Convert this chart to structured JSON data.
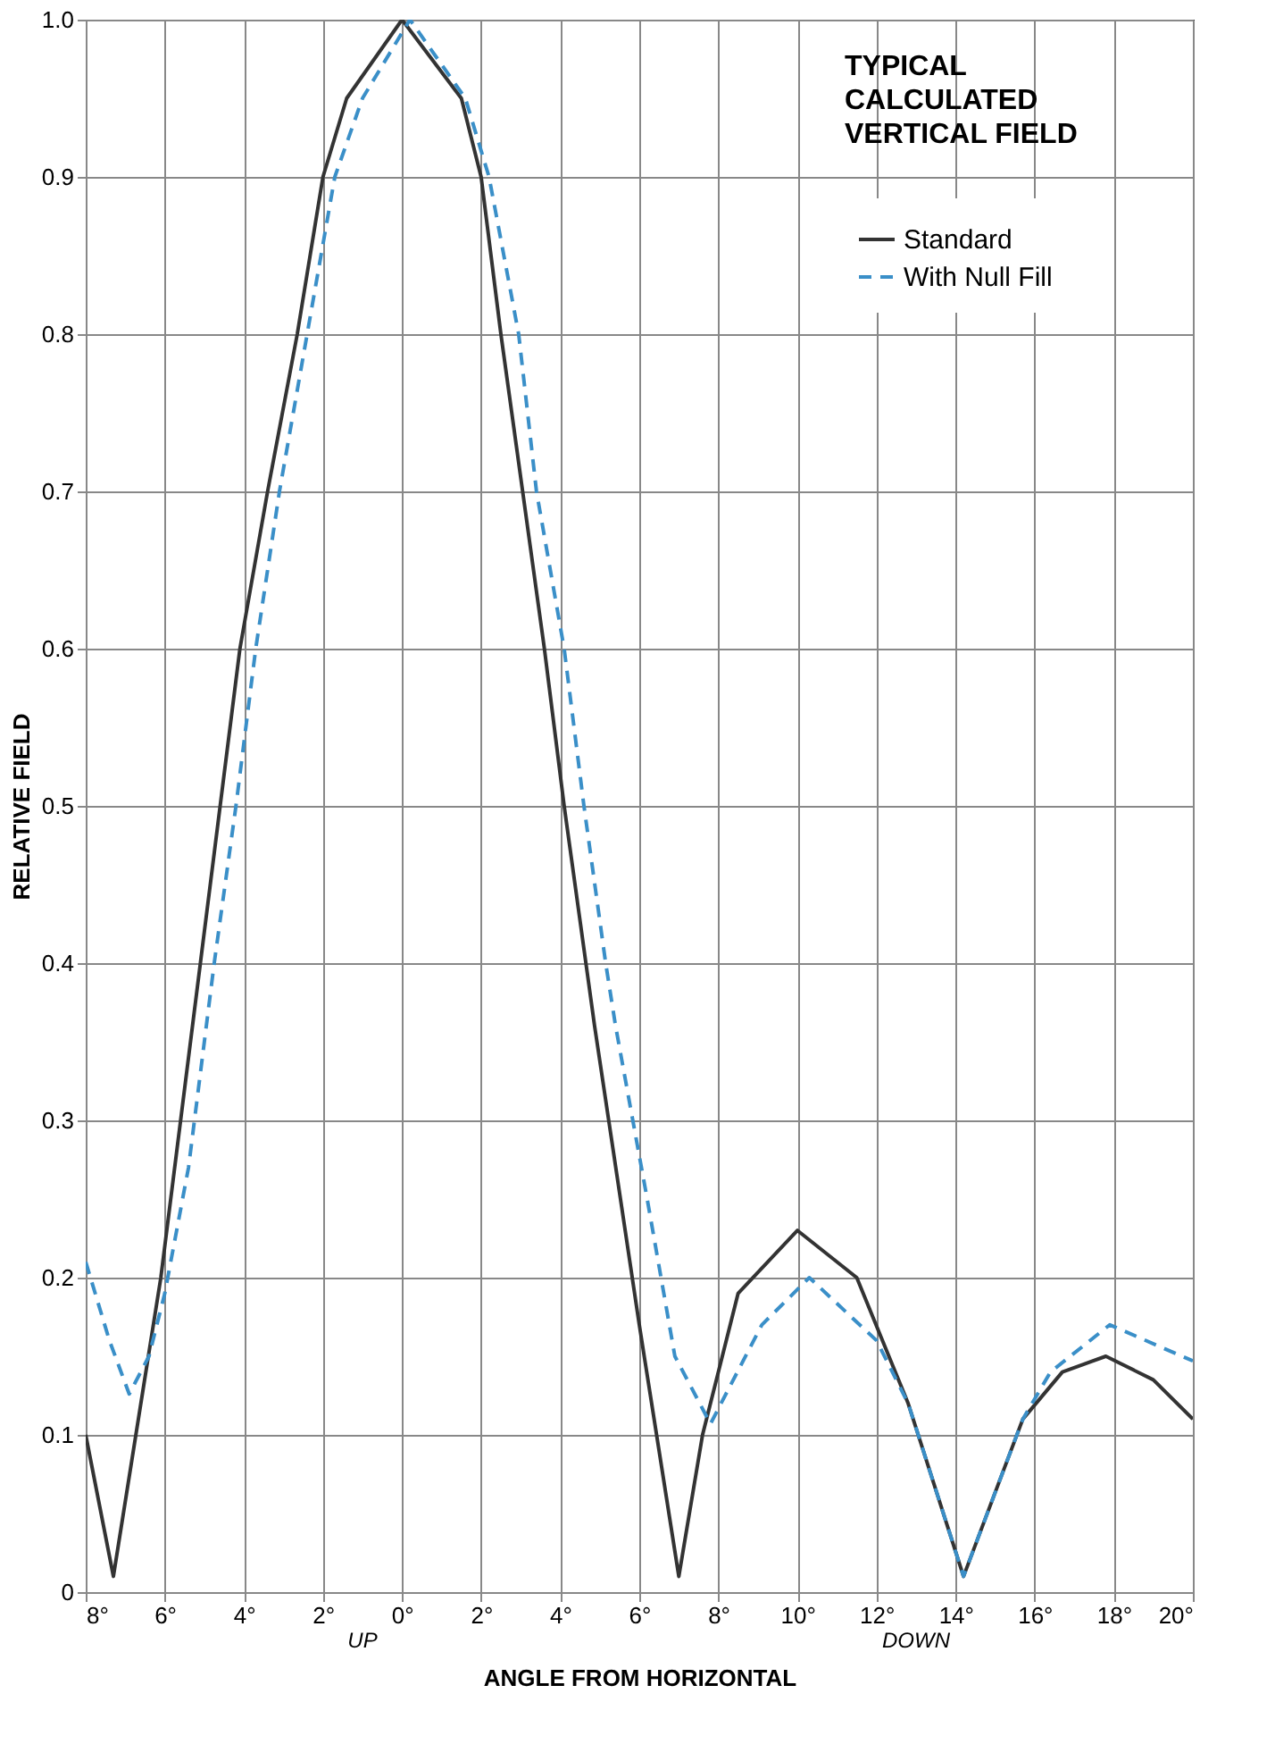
{
  "chart_data": {
    "type": "line",
    "title": "TYPICAL CALCULATED VERTICAL FIELD",
    "xlabel": "ANGLE FROM HORIZONTAL",
    "ylabel": "RELATIVE FIELD",
    "xlim": [
      -8,
      20
    ],
    "ylim": [
      0,
      1
    ],
    "xticks": [
      {
        "value": -8,
        "label": "8°"
      },
      {
        "value": -6,
        "label": "6°"
      },
      {
        "value": -4,
        "label": "4°"
      },
      {
        "value": -2,
        "label": "2°"
      },
      {
        "value": 0,
        "label": "0°"
      },
      {
        "value": 2,
        "label": "2°"
      },
      {
        "value": 4,
        "label": "4°"
      },
      {
        "value": 6,
        "label": "6°"
      },
      {
        "value": 8,
        "label": "8°"
      },
      {
        "value": 10,
        "label": "10°"
      },
      {
        "value": 12,
        "label": "12°"
      },
      {
        "value": 14,
        "label": "14°"
      },
      {
        "value": 16,
        "label": "16°"
      },
      {
        "value": 18,
        "label": "18°"
      },
      {
        "value": 20,
        "label": "20°"
      }
    ],
    "yticks": [
      0,
      0.1,
      0.2,
      0.3,
      0.4,
      0.5,
      0.6,
      0.7,
      0.8,
      0.9,
      {
        "value": 1,
        "label": "1.0"
      }
    ],
    "grid": true,
    "legend": "top right",
    "annotations": [
      "UP",
      "DOWN"
    ],
    "series": [
      {
        "name": "Standard",
        "color": "#333333",
        "line_style": "solid",
        "x": [
          -8,
          -7.3,
          -6.1,
          -5.6,
          -5.1,
          -4.6,
          -4.1,
          -3.4,
          -2.65,
          -2.0,
          -1.4,
          0,
          1.5,
          2.0,
          2.5,
          3.05,
          3.6,
          4.1,
          4.65,
          4.87,
          6.0,
          7.0,
          7.6,
          8.5,
          10.0,
          11.5,
          12.8,
          14.2,
          15.7,
          16.7,
          17.8,
          19.0,
          20
        ],
        "values": [
          0.1,
          0.01,
          0.2,
          0.3,
          0.4,
          0.5,
          0.6,
          0.7,
          0.8,
          0.9,
          0.95,
          1.0,
          0.95,
          0.9,
          0.8,
          0.7,
          0.6,
          0.5,
          0.4,
          0.36,
          0.17,
          0.01,
          0.1,
          0.19,
          0.23,
          0.2,
          0.12,
          0.01,
          0.11,
          0.14,
          0.15,
          0.135,
          0.11
        ]
      },
      {
        "name": "With Null Fill",
        "color": "#3a8fc8",
        "line_style": "dashed",
        "x": [
          -8,
          -7.4,
          -6.9,
          -6.4,
          -6.0,
          -5.4,
          -4.75,
          -4.2,
          -3.7,
          -3.1,
          -2.4,
          -1.7,
          -1.0,
          0.2,
          1.6,
          2.2,
          2.95,
          3.4,
          4.1,
          4.6,
          5.15,
          5.4,
          6.2,
          6.9,
          7.8,
          9.1,
          10.3,
          12.0,
          12.8,
          14.2,
          15.7,
          16.4,
          17.9,
          20
        ],
        "values": [
          0.21,
          0.16,
          0.126,
          0.15,
          0.19,
          0.27,
          0.4,
          0.5,
          0.6,
          0.7,
          0.8,
          0.9,
          0.95,
          1.0,
          0.95,
          0.9,
          0.8,
          0.7,
          0.6,
          0.5,
          0.4,
          0.36,
          0.25,
          0.15,
          0.107,
          0.17,
          0.2,
          0.16,
          0.12,
          0.01,
          0.11,
          0.14,
          0.17,
          0.147
        ]
      }
    ]
  }
}
